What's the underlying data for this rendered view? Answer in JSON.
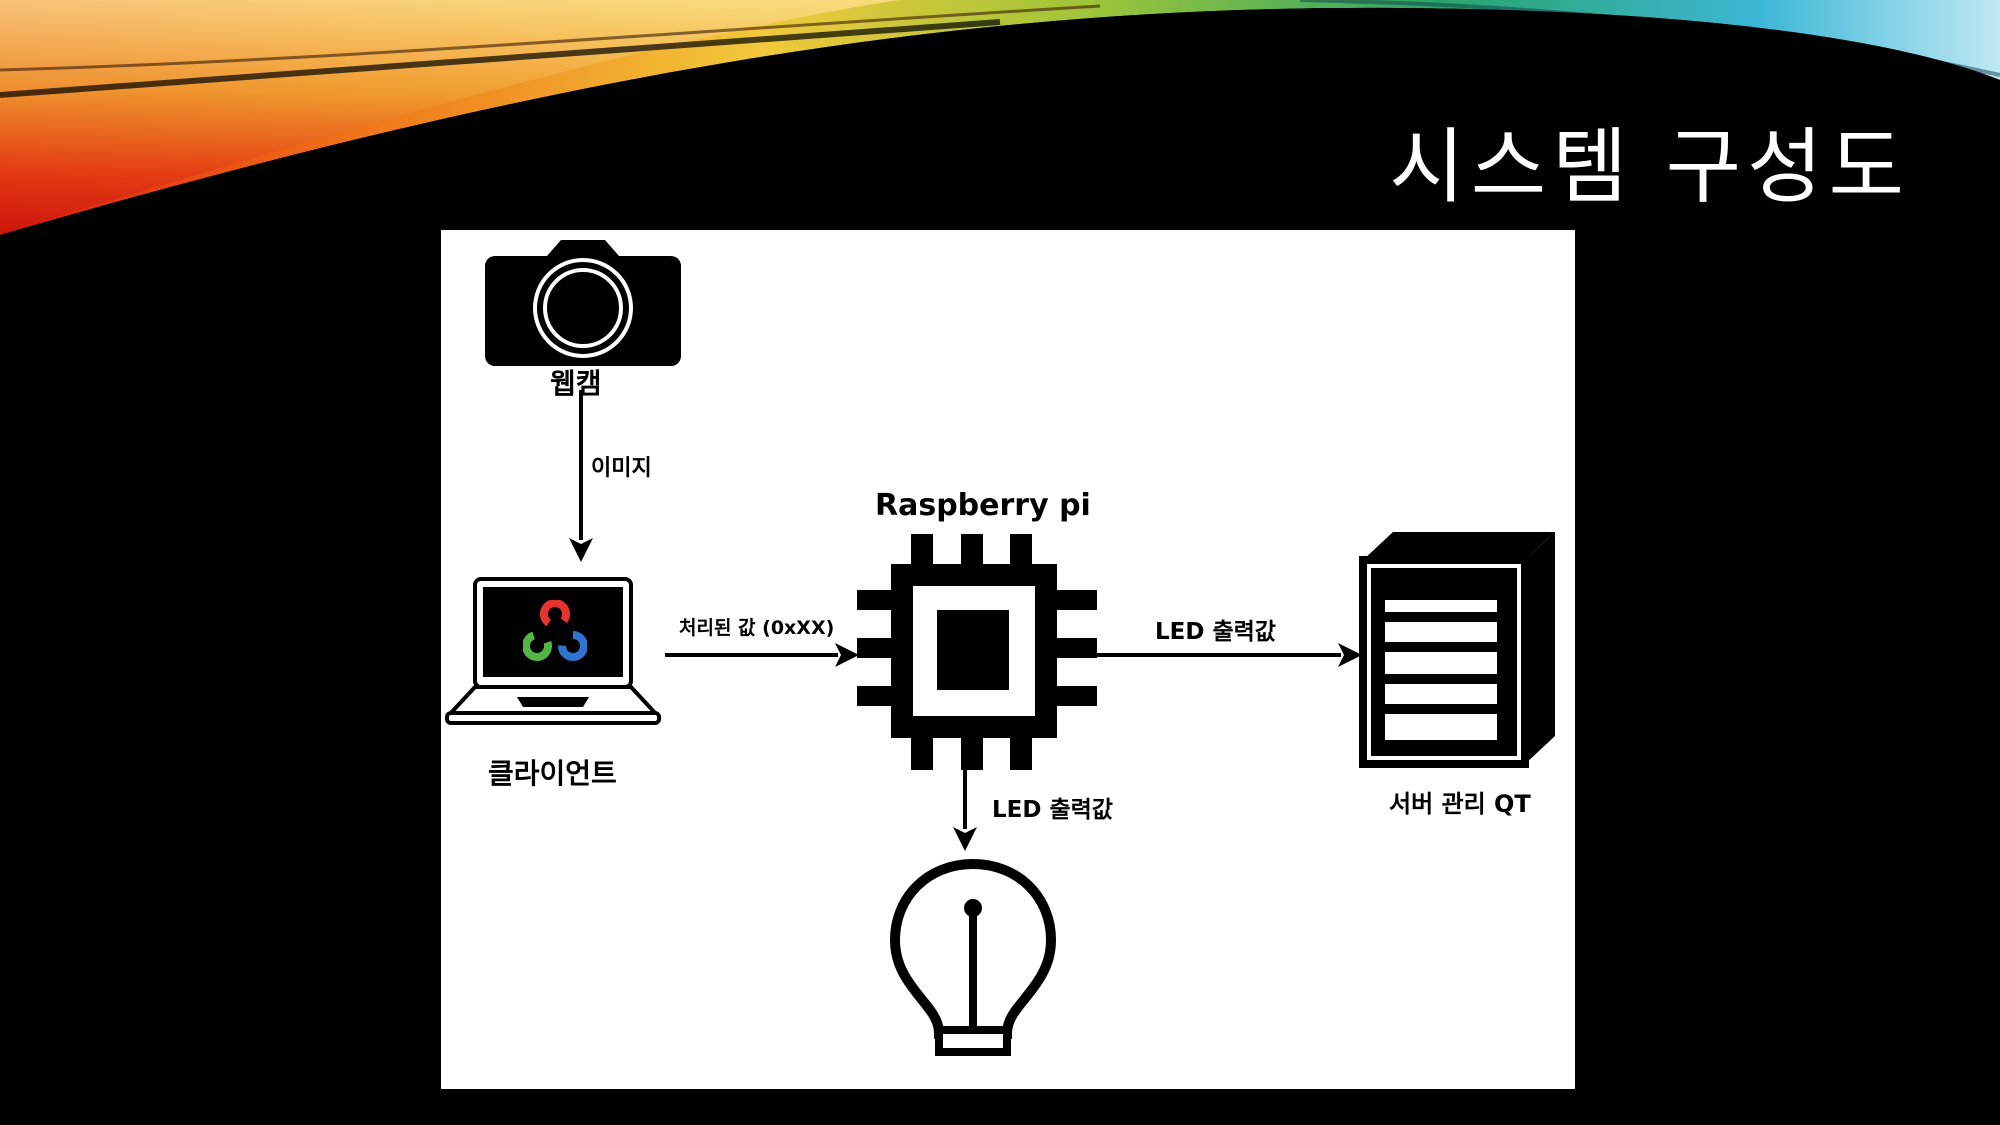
{
  "slide": {
    "title": "시스템 구성도"
  },
  "diagram": {
    "nodes": {
      "webcam": "웹캠",
      "client": "클라이언트",
      "raspberry": "Raspberry pi",
      "server": "서버 관리 QT"
    },
    "edges": {
      "webcam_to_client": "이미지",
      "client_to_pi": "처리된 값 (0xXX)",
      "pi_to_server": "LED 출력값",
      "pi_to_bulb": "LED 출력값"
    },
    "colors": {
      "panel": "#ffffff",
      "ink": "#000000",
      "opencv_red": "#e8332d",
      "opencv_green": "#53b544",
      "opencv_blue": "#2f74d0"
    },
    "icons": [
      "camera-icon",
      "laptop-icon",
      "opencv-logo",
      "chip-icon",
      "server-icon",
      "lightbulb-icon"
    ]
  }
}
